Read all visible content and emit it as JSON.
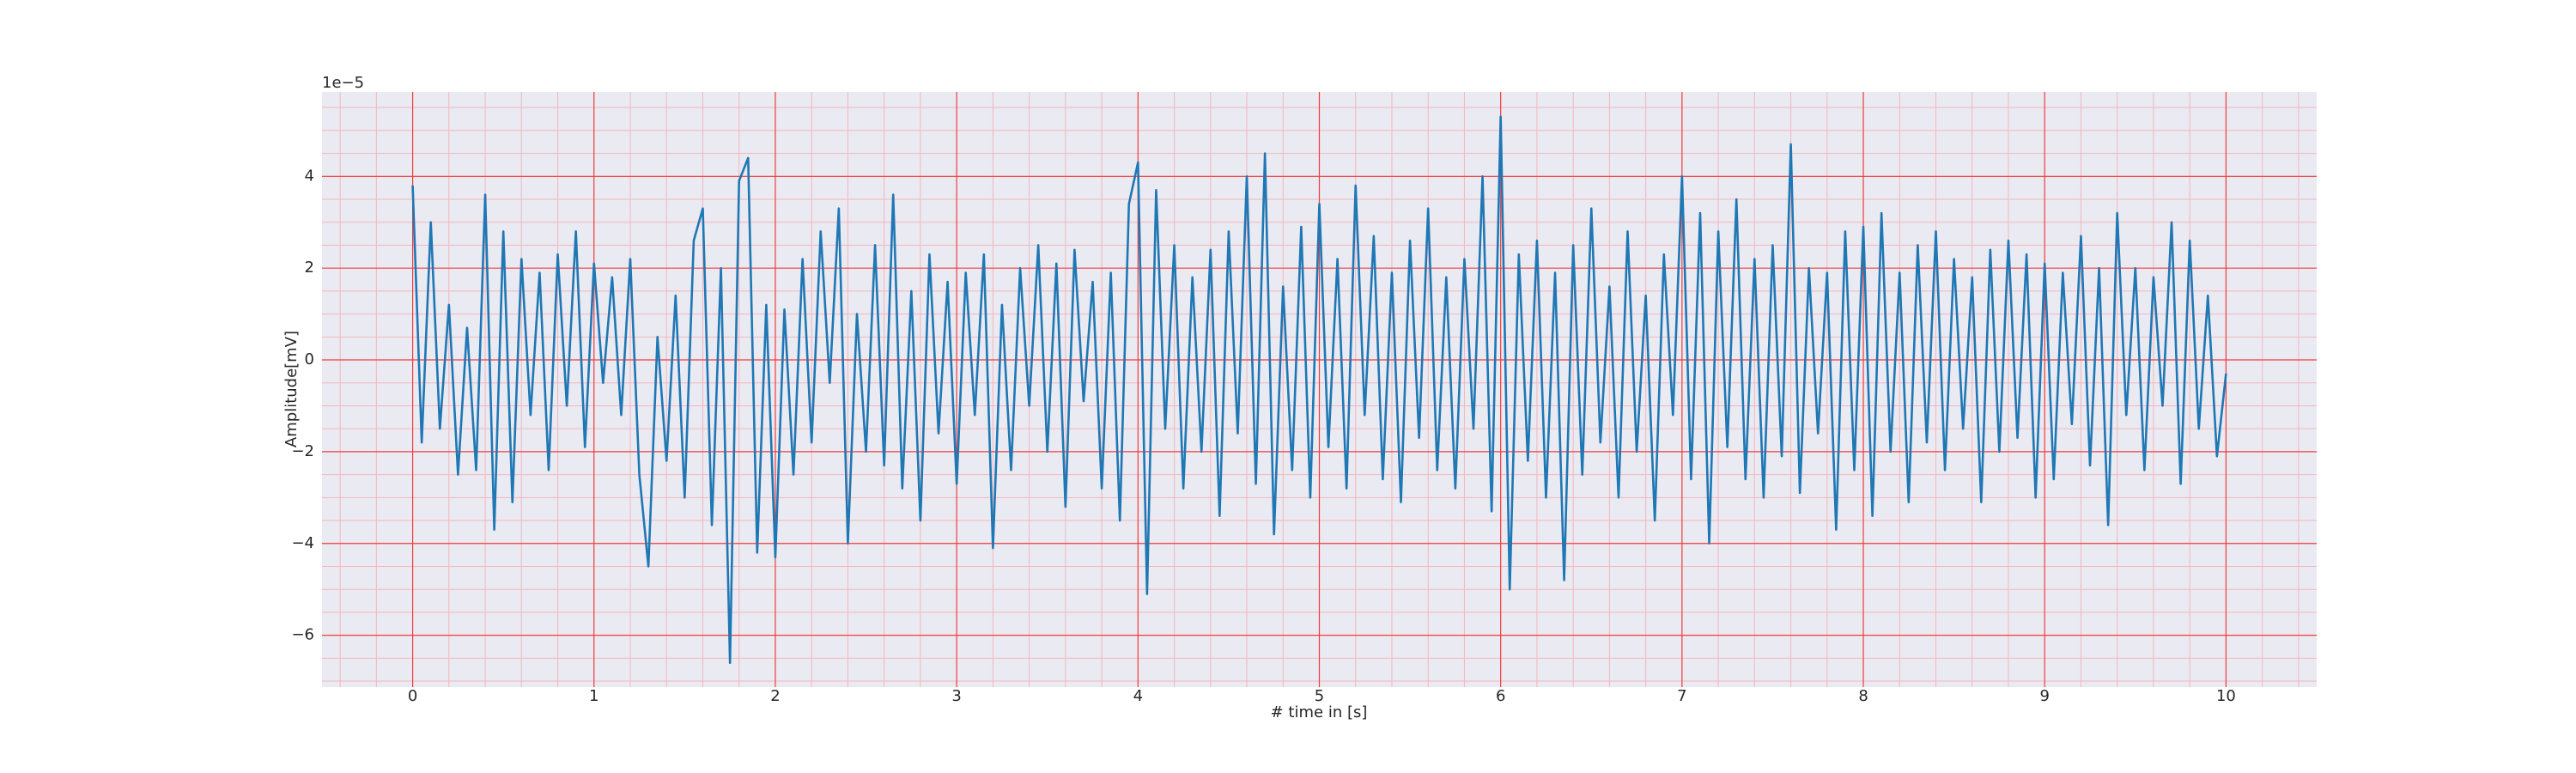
{
  "chart_data": {
    "type": "line",
    "x_label": "# time in [s]",
    "y_label": "Amplitude[mV]",
    "y_offset_label": "1e−5",
    "xlim": [
      -0.5,
      10.5
    ],
    "ylim": [
      -7.13,
      5.84
    ],
    "xticks": [
      0,
      1,
      2,
      3,
      4,
      5,
      6,
      7,
      8,
      9,
      10
    ],
    "yticks": [
      {
        "value": -6,
        "label": "−6"
      },
      {
        "value": -4,
        "label": "−4"
      },
      {
        "value": -2,
        "label": "−2"
      },
      0,
      2,
      4
    ],
    "xminorticks": [
      -0.4,
      -0.2,
      0.2,
      0.4,
      0.6,
      0.8,
      1.2,
      1.4,
      1.6,
      1.8,
      2.2,
      2.4,
      2.6,
      2.8,
      3.2,
      3.4,
      3.6,
      3.8,
      4.2,
      4.4,
      4.6,
      4.8,
      5.2,
      5.4,
      5.6,
      5.8,
      6.2,
      6.4,
      6.6,
      6.8,
      7.2,
      7.4,
      7.6,
      7.8,
      8.2,
      8.4,
      8.6,
      8.8,
      9.2,
      9.4,
      9.6,
      9.8,
      10.2,
      10.4
    ],
    "yminorticks": [
      -7,
      -6.5,
      -5.5,
      -5,
      -4.5,
      -3.5,
      -3,
      -2.5,
      -1.5,
      -1,
      -0.5,
      0.5,
      1,
      1.5,
      2.5,
      3,
      3.5,
      4.5,
      5,
      5.5
    ],
    "grid": true,
    "minor_grid": true,
    "series": [
      {
        "color": "#1f77b4",
        "x": [
          0,
          0.05,
          0.1,
          0.15,
          0.2,
          0.25,
          0.3,
          0.35,
          0.4,
          0.45,
          0.5,
          0.55,
          0.6,
          0.65,
          0.7,
          0.75,
          0.8,
          0.85,
          0.9,
          0.95,
          1,
          1.05,
          1.1,
          1.15,
          1.2,
          1.25,
          1.3,
          1.35,
          1.4,
          1.45,
          1.5,
          1.55,
          1.6,
          1.65,
          1.7,
          1.75,
          1.8,
          1.85,
          1.9,
          1.95,
          2,
          2.05,
          2.1,
          2.15,
          2.2,
          2.25,
          2.3,
          2.35,
          2.4,
          2.45,
          2.5,
          2.55,
          2.6,
          2.65,
          2.7,
          2.75,
          2.8,
          2.85,
          2.9,
          2.95,
          3,
          3.05,
          3.1,
          3.15,
          3.2,
          3.25,
          3.3,
          3.35,
          3.4,
          3.45,
          3.5,
          3.55,
          3.6,
          3.65,
          3.7,
          3.75,
          3.8,
          3.85,
          3.9,
          3.95,
          4,
          4.05,
          4.1,
          4.15,
          4.2,
          4.25,
          4.3,
          4.35,
          4.4,
          4.45,
          4.5,
          4.55,
          4.6,
          4.65,
          4.7,
          4.75,
          4.8,
          4.85,
          4.9,
          4.95,
          5,
          5.05,
          5.1,
          5.15,
          5.2,
          5.25,
          5.3,
          5.35,
          5.4,
          5.45,
          5.5,
          5.55,
          5.6,
          5.65,
          5.7,
          5.75,
          5.8,
          5.85,
          5.9,
          5.95,
          6,
          6.05,
          6.1,
          6.15,
          6.2,
          6.25,
          6.3,
          6.35,
          6.4,
          6.45,
          6.5,
          6.55,
          6.6,
          6.65,
          6.7,
          6.75,
          6.8,
          6.85,
          6.9,
          6.95,
          7,
          7.05,
          7.1,
          7.15,
          7.2,
          7.25,
          7.3,
          7.35,
          7.4,
          7.45,
          7.5,
          7.55,
          7.6,
          7.65,
          7.7,
          7.75,
          7.8,
          7.85,
          7.9,
          7.95,
          8,
          8.05,
          8.1,
          8.15,
          8.2,
          8.25,
          8.3,
          8.35,
          8.4,
          8.45,
          8.5,
          8.55,
          8.6,
          8.65,
          8.7,
          8.75,
          8.8,
          8.85,
          8.9,
          8.95,
          9,
          9.05,
          9.1,
          9.15,
          9.2,
          9.25,
          9.3,
          9.35,
          9.4,
          9.45,
          9.5,
          9.55,
          9.6,
          9.65,
          9.7,
          9.75,
          9.8,
          9.85,
          9.9,
          9.95,
          10
        ],
        "values": [
          3.8,
          -1.8,
          3.0,
          -1.5,
          1.2,
          -2.5,
          0.7,
          -2.4,
          3.6,
          -3.7,
          2.8,
          -3.1,
          2.2,
          -1.2,
          1.9,
          -2.4,
          2.3,
          -1.0,
          2.8,
          -1.9,
          2.1,
          -0.5,
          1.8,
          -1.2,
          2.2,
          -2.5,
          -4.5,
          0.5,
          -2.2,
          1.4,
          -3.0,
          2.6,
          3.3,
          -3.6,
          2.0,
          -6.6,
          3.9,
          4.4,
          -4.2,
          1.2,
          -4.3,
          1.1,
          -2.5,
          2.2,
          -1.8,
          2.8,
          -0.5,
          3.3,
          -4.0,
          1.0,
          -2.0,
          2.5,
          -2.3,
          3.6,
          -2.8,
          1.5,
          -3.5,
          2.3,
          -1.6,
          1.7,
          -2.7,
          1.9,
          -1.2,
          2.3,
          -4.1,
          1.2,
          -2.4,
          2.0,
          -1.0,
          2.5,
          -2.0,
          2.1,
          -3.2,
          2.4,
          -0.9,
          1.7,
          -2.8,
          1.9,
          -3.5,
          3.4,
          4.3,
          -5.1,
          3.7,
          -1.5,
          2.5,
          -2.8,
          1.8,
          -2.0,
          2.4,
          -3.4,
          2.8,
          -1.6,
          4.0,
          -2.7,
          4.5,
          -3.8,
          1.6,
          -2.4,
          2.9,
          -3.0,
          3.4,
          -1.9,
          2.2,
          -2.8,
          3.8,
          -1.2,
          2.7,
          -2.6,
          1.9,
          -3.1,
          2.6,
          -1.7,
          3.3,
          -2.4,
          1.8,
          -2.8,
          2.2,
          -1.5,
          4.0,
          -3.3,
          5.3,
          -5.0,
          2.3,
          -2.2,
          2.6,
          -3.0,
          1.9,
          -4.8,
          2.5,
          -2.5,
          3.3,
          -1.8,
          1.6,
          -3.0,
          2.8,
          -2.0,
          1.4,
          -3.5,
          2.3,
          -1.2,
          4.0,
          -2.6,
          3.2,
          -4.0,
          2.8,
          -1.9,
          3.5,
          -2.6,
          2.2,
          -3.0,
          2.5,
          -2.1,
          4.7,
          -2.9,
          2.0,
          -1.6,
          1.9,
          -3.7,
          2.8,
          -2.4,
          2.9,
          -3.4,
          3.2,
          -2.0,
          1.9,
          -3.1,
          2.5,
          -1.8,
          2.8,
          -2.4,
          2.2,
          -1.5,
          1.8,
          -3.1,
          2.4,
          -2.0,
          2.6,
          -1.7,
          2.3,
          -3.0,
          2.1,
          -2.6,
          1.9,
          -1.4,
          2.7,
          -2.3,
          2.0,
          -3.6,
          3.2,
          -1.2,
          2.0,
          -2.4,
          1.8,
          -1.0,
          3.0,
          -2.7,
          2.6,
          -1.5,
          1.4,
          -2.1,
          -0.3
        ]
      }
    ]
  }
}
